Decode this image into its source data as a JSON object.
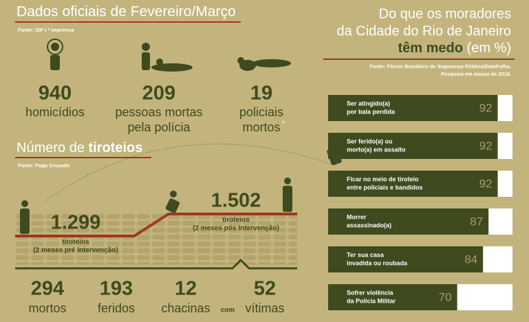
{
  "header": {
    "title": "Dados oficiais de Fevereiro/Março",
    "source": "Fonte: ISP | * imprensa"
  },
  "stats": [
    {
      "value": "940",
      "label_lines": [
        "homicídios"
      ]
    },
    {
      "value": "209",
      "label_lines": [
        "pessoas mortas",
        "pela polícia"
      ]
    },
    {
      "value": "19",
      "label_lines": [
        "policiais",
        "mortos"
      ],
      "note_mark": "*"
    }
  ],
  "shootings": {
    "title_prefix": "Número de",
    "title_bold": "tiroteios",
    "source": "Fonte: Fogo Cruzado",
    "before": {
      "value": "1.299",
      "label_lines": [
        "tiroteios",
        "(2 meses pré Intervenção)"
      ]
    },
    "after": {
      "value": "1.502",
      "label_lines": [
        "tiroteios",
        "(2 meses pós Intervenção)"
      ]
    },
    "totals": [
      {
        "value": "294",
        "label": "mortos"
      },
      {
        "value": "193",
        "label": "feridos"
      },
      {
        "value": "12",
        "label": "chacinas"
      },
      {
        "value": "52",
        "label": "vítimas"
      }
    ],
    "connector": "com"
  },
  "chart_data": {
    "type": "bar",
    "orientation": "horizontal",
    "title_lines": [
      "Do que os moradores",
      "da Cidade do Rio de Janeiro"
    ],
    "title_bold": "têm medo",
    "title_unit": "(em %)",
    "source_lines": [
      "Fonte: Fórum Brasileiro de Segurança Pública/DataFolha.",
      "Pesquisa em março de 2018."
    ],
    "categories": [
      [
        "Ser atingido(a)",
        "por bala perdida"
      ],
      [
        "Ser ferido(a) ou",
        "morto(a) em assalto"
      ],
      [
        "Ficar no meio de tiroteio",
        "entre policiais e bandidos"
      ],
      [
        "Morrer",
        "assassinado(a)"
      ],
      [
        "Ter sua casa",
        "invadida ou roubada"
      ],
      [
        "Sofrer violência",
        "da Polícia Militar"
      ]
    ],
    "values": [
      92,
      92,
      92,
      87,
      84,
      70
    ],
    "color": "#3f4a1e",
    "xlim": [
      0,
      100
    ]
  }
}
